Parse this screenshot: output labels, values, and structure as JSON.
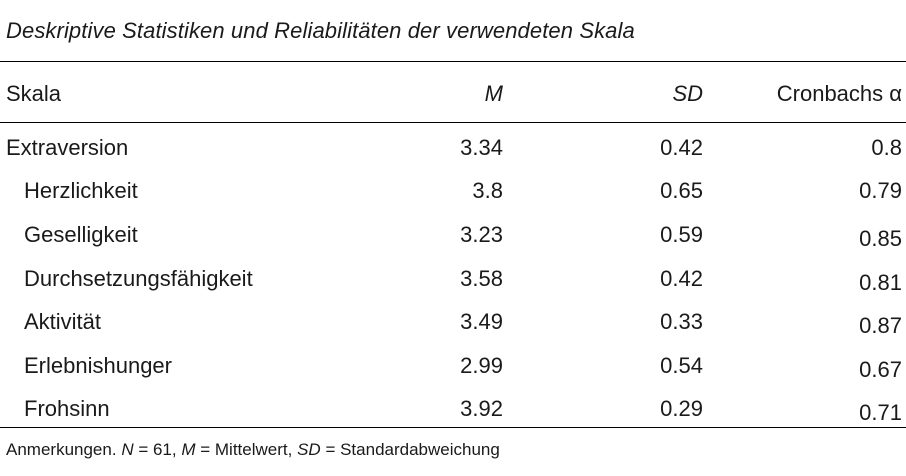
{
  "caption": "Deskriptive Statistiken und Reliabilitäten der verwendeten Skala",
  "header": {
    "scale": "Skala",
    "m": "M",
    "sd": "SD",
    "alpha": "Cronbachs α"
  },
  "rows": [
    {
      "name": "Extraversion",
      "m": "3.34",
      "sd": "0.42",
      "alpha": "0.8"
    },
    {
      "name": "Herzlichkeit",
      "m": "3.8",
      "sd": "0.65",
      "alpha": "0.79"
    },
    {
      "name": "Geselligkeit",
      "m": "3.23",
      "sd": "0.59",
      "alpha": "0.85"
    },
    {
      "name": "Durchsetzungsfähigkeit",
      "m": "3.58",
      "sd": "0.42",
      "alpha": "0.81"
    },
    {
      "name": "Aktivität",
      "m": "3.49",
      "sd": "0.33",
      "alpha": "0.87"
    },
    {
      "name": "Erlebnishunger",
      "m": "2.99",
      "sd": "0.54",
      "alpha": "0.67"
    },
    {
      "name": "Frohsinn",
      "m": "3.92",
      "sd": "0.29",
      "alpha": "0.71"
    }
  ],
  "note": {
    "prefix": "Anmerkungen.",
    "n_label": "N",
    "n_text": " = 61,",
    "m_label": "M",
    "m_text": " = Mittelwert,",
    "sd_label": "SD",
    "sd_text": " = Standardabweichung"
  }
}
